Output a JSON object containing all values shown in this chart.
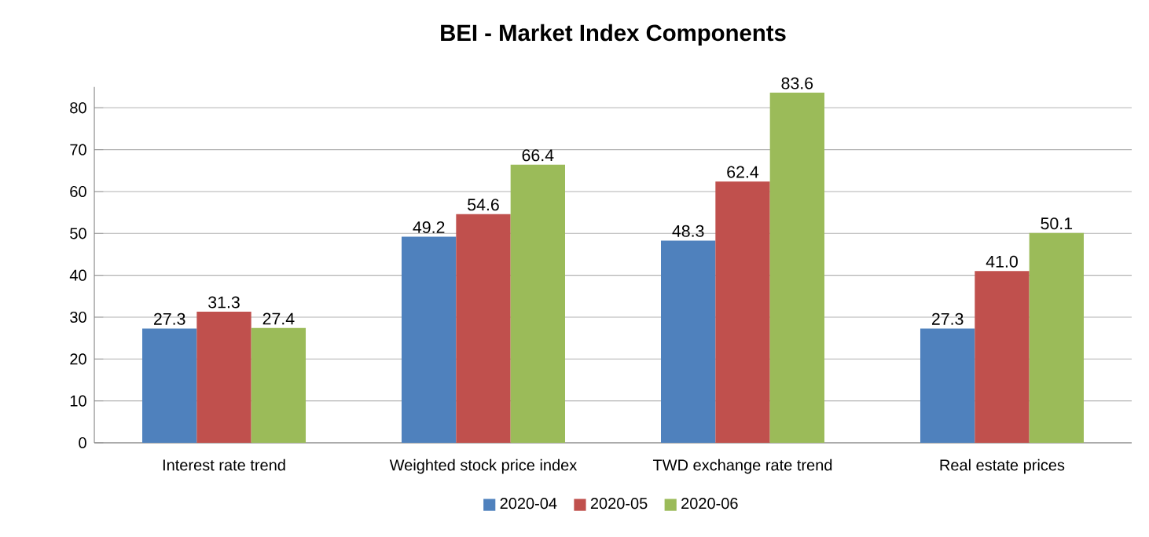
{
  "chart_data": {
    "type": "bar",
    "title": "BEI - Market Index Components",
    "categories": [
      "Interest rate trend",
      "Weighted stock price index",
      "TWD exchange rate trend",
      "Real estate prices"
    ],
    "series": [
      {
        "name": "2020-04",
        "color": "#4f81bd",
        "values": [
          27.3,
          49.2,
          48.3,
          27.3
        ],
        "value_labels": [
          "27.3",
          "49.2",
          "48.3",
          "27.3"
        ]
      },
      {
        "name": "2020-05",
        "color": "#c0504d",
        "values": [
          31.3,
          54.6,
          62.4,
          41.0
        ],
        "value_labels": [
          "31.3",
          "54.6",
          "62.4",
          "41.0"
        ]
      },
      {
        "name": "2020-06",
        "color": "#9bbb59",
        "values": [
          27.4,
          66.4,
          83.6,
          50.1
        ],
        "value_labels": [
          "27.4",
          "66.4",
          "83.6",
          "50.1"
        ]
      }
    ],
    "ylim": [
      0,
      85
    ],
    "yticks": [
      0,
      10,
      20,
      30,
      40,
      50,
      60,
      70,
      80
    ],
    "grid": "y",
    "legend": "bottom"
  }
}
